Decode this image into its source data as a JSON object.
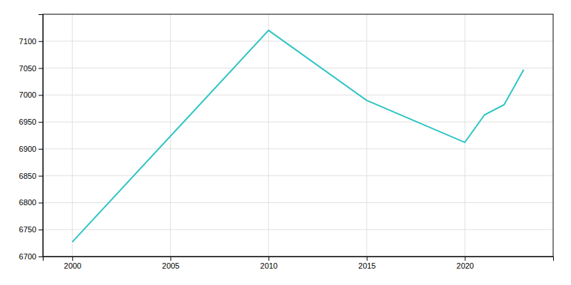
{
  "chart_data": {
    "type": "line",
    "x": [
      2000,
      2010,
      2015,
      2020,
      2021,
      2022,
      2023
    ],
    "values": [
      6727,
      7120,
      6990,
      6912,
      6963,
      6982,
      7047
    ],
    "color": "#2ec4c4",
    "xlim": [
      1998.5,
      2024.5
    ],
    "ylim": [
      6700,
      7150
    ],
    "xticks": [
      2000,
      2005,
      2010,
      2015,
      2020
    ],
    "yticks": [
      6700,
      6750,
      6800,
      6850,
      6900,
      6950,
      7000,
      7050,
      7100
    ],
    "grid": true
  }
}
